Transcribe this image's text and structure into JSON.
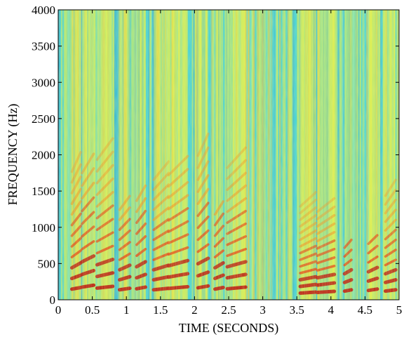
{
  "chart_data": {
    "type": "heatmap",
    "title": "",
    "xlabel": "TIME (SECONDS)",
    "ylabel": "FREQUENCY (Hz)",
    "xlim": [
      0,
      5
    ],
    "ylim": [
      0,
      4000
    ],
    "xticks": [
      0,
      0.5,
      1,
      1.5,
      2,
      2.5,
      3,
      3.5,
      4,
      4.5,
      5
    ],
    "xtick_labels": [
      "0",
      "0.5",
      "1",
      "1.5",
      "2",
      "2.5",
      "3",
      "3.5",
      "4",
      "4.5",
      "5"
    ],
    "yticks": [
      0,
      500,
      1000,
      1500,
      2000,
      2500,
      3000,
      3500,
      4000
    ],
    "ytick_labels": [
      "0",
      "500",
      "1000",
      "1500",
      "2000",
      "2500",
      "3000",
      "3500",
      "4000"
    ],
    "colormap": "jet",
    "colors": {
      "background": "#3ad0e0",
      "low": "#2aa8d8",
      "mid": "#f2f23a",
      "high": "#e23a12",
      "peak": "#b40f0f"
    },
    "grid": false,
    "voiced_segments": [
      {
        "start": 0.2,
        "end": 0.33,
        "f0": 160,
        "harmonics": 12
      },
      {
        "start": 0.35,
        "end": 0.52,
        "f0": 190,
        "harmonics": 10
      },
      {
        "start": 0.57,
        "end": 0.8,
        "f0": 175,
        "harmonics": 12
      },
      {
        "start": 0.9,
        "end": 1.05,
        "f0": 150,
        "harmonics": 9
      },
      {
        "start": 1.15,
        "end": 1.28,
        "f0": 165,
        "harmonics": 9
      },
      {
        "start": 1.4,
        "end": 1.62,
        "f0": 150,
        "harmonics": 12
      },
      {
        "start": 1.62,
        "end": 1.9,
        "f0": 170,
        "harmonics": 11
      },
      {
        "start": 2.05,
        "end": 2.2,
        "f0": 180,
        "harmonics": 12
      },
      {
        "start": 2.3,
        "end": 2.42,
        "f0": 160,
        "harmonics": 8
      },
      {
        "start": 2.48,
        "end": 2.75,
        "f0": 165,
        "harmonics": 12
      },
      {
        "start": 3.55,
        "end": 3.78,
        "f0": 100,
        "harmonics": 14
      },
      {
        "start": 3.8,
        "end": 4.05,
        "f0": 110,
        "harmonics": 12
      },
      {
        "start": 4.2,
        "end": 4.3,
        "f0": 130,
        "harmonics": 6
      },
      {
        "start": 4.55,
        "end": 4.68,
        "f0": 140,
        "harmonics": 6
      },
      {
        "start": 4.8,
        "end": 4.95,
        "f0": 130,
        "harmonics": 12
      }
    ]
  }
}
